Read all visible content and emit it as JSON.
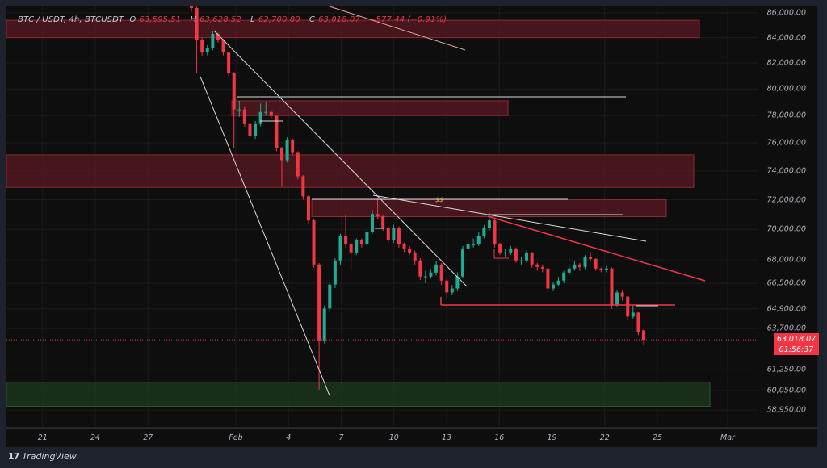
{
  "header": {
    "symbol": "BTC / USDT, 4h, BTCUSDT",
    "open_label": "O",
    "open": "63,595.51",
    "high_label": "H",
    "high": "63,628.52",
    "low_label": "L",
    "low": "62,700.80",
    "close_label": "C",
    "close": "63,018.07",
    "change": "−577.44 (−0.91%)"
  },
  "price_tag": {
    "price": "63,018.07",
    "countdown": "01:56:37"
  },
  "footer": {
    "logo_mark": "17",
    "brand": "TradingView"
  },
  "colors": {
    "up": "#22ab94",
    "down": "#f23645",
    "background": "#0e0e0e",
    "supply_zone": "#5a1a22",
    "demand_zone": "#1c3a1e",
    "trendline": "#d9d9d9",
    "red_trendline": "#f23645",
    "liquidity_label": "#e0b64a"
  },
  "annotations": {
    "liquidity_label": "$$"
  },
  "chart_data": {
    "type": "candlestick",
    "symbol": "BTCUSDT",
    "interval": "4h",
    "y_scale": "log",
    "ylim": [
      58500,
      86500
    ],
    "grid": true,
    "y_ticks": [
      86000,
      84000,
      82000,
      80000,
      78000,
      76000,
      74000,
      72000,
      70000,
      68000,
      66500,
      64900,
      63700,
      61250,
      60050,
      58950
    ],
    "y_tick_labels": [
      "86,000.00",
      "84,000.00",
      "82,000.00",
      "80,000.00",
      "78,000.00",
      "76,000.00",
      "74,000.00",
      "72,000.00",
      "70,000.00",
      "68,000.00",
      "66,500.00",
      "64,900.00",
      "63,700.00",
      "61,250.00",
      "60,050.00",
      "58,950.00"
    ],
    "x_tick_labels": [
      "21",
      "24",
      "27",
      "Feb",
      "4",
      "7",
      "10",
      "13",
      "16",
      "19",
      "22",
      "25",
      "Mar"
    ],
    "x_ticks_days_from_jan": [
      21,
      24,
      27,
      32,
      35,
      38,
      41,
      44,
      47,
      50,
      53,
      56,
      60
    ],
    "last_price": 63018.07,
    "candles_ohlc": [
      [
        86800,
        86900,
        86100,
        86400
      ],
      [
        86400,
        86500,
        81200,
        83800
      ],
      [
        83800,
        84000,
        82500,
        82820
      ],
      [
        82820,
        83400,
        82600,
        83150
      ],
      [
        83150,
        84500,
        83000,
        84300
      ],
      [
        84300,
        84400,
        83600,
        83800
      ],
      [
        83800,
        83900,
        82600,
        82820
      ],
      [
        82820,
        82900,
        81000,
        81230
      ],
      [
        81230,
        81300,
        75600,
        78460
      ],
      [
        78460,
        79100,
        77900,
        78460
      ],
      [
        78460,
        78700,
        77200,
        77370
      ],
      [
        77370,
        77500,
        76200,
        76490
      ],
      [
        76490,
        77600,
        76300,
        77370
      ],
      [
        77370,
        78900,
        77200,
        78270
      ],
      [
        78270,
        79000,
        78000,
        78270
      ],
      [
        78270,
        78400,
        77800,
        77970
      ],
      [
        77970,
        78000,
        75400,
        75620
      ],
      [
        75620,
        75700,
        72900,
        74760
      ],
      [
        74760,
        76400,
        74600,
        76200
      ],
      [
        76200,
        76300,
        75100,
        75330
      ],
      [
        75330,
        75400,
        73400,
        73620
      ],
      [
        73620,
        73700,
        72000,
        72230
      ],
      [
        72230,
        72300,
        70400,
        70600
      ],
      [
        70600,
        70700,
        67500,
        67700
      ],
      [
        67700,
        67800,
        60100,
        62980
      ],
      [
        62980,
        65100,
        62800,
        64920
      ],
      [
        64920,
        66600,
        64700,
        66420
      ],
      [
        66420,
        68100,
        66200,
        67960
      ],
      [
        67960,
        69700,
        67700,
        69530
      ],
      [
        69530,
        71000,
        68800,
        69000
      ],
      [
        69000,
        69200,
        67300,
        68480
      ],
      [
        68480,
        69400,
        68300,
        69270
      ],
      [
        69270,
        69400,
        68800,
        69000
      ],
      [
        69000,
        70000,
        68900,
        69800
      ],
      [
        69800,
        71300,
        69700,
        71030
      ],
      [
        71030,
        72100,
        70700,
        70870
      ],
      [
        70870,
        71000,
        69900,
        70070
      ],
      [
        70070,
        70200,
        69100,
        69270
      ],
      [
        69270,
        70300,
        69100,
        70070
      ],
      [
        70070,
        70200,
        68800,
        69000
      ],
      [
        69000,
        69100,
        68500,
        68740
      ],
      [
        68740,
        68900,
        68300,
        68480
      ],
      [
        68480,
        68600,
        67700,
        67960
      ],
      [
        67960,
        68100,
        66700,
        66930
      ],
      [
        66930,
        67300,
        66500,
        66930
      ],
      [
        66930,
        67400,
        66800,
        67180
      ],
      [
        67180,
        67900,
        67000,
        67700
      ],
      [
        67700,
        67800,
        66400,
        66670
      ],
      [
        66670,
        66800,
        65600,
        65920
      ],
      [
        65920,
        66400,
        65800,
        66170
      ],
      [
        66170,
        67200,
        66000,
        66930
      ],
      [
        66930,
        68900,
        66800,
        68740
      ],
      [
        68740,
        69300,
        68600,
        69000
      ],
      [
        69000,
        69400,
        68800,
        69000
      ],
      [
        69000,
        69800,
        68900,
        69530
      ],
      [
        69530,
        70300,
        69400,
        70070
      ],
      [
        70070,
        71100,
        69900,
        70600
      ],
      [
        70600,
        70700,
        68800,
        69000
      ],
      [
        69000,
        69100,
        68300,
        68480
      ],
      [
        68480,
        68700,
        68200,
        68480
      ],
      [
        68480,
        68900,
        68300,
        68740
      ],
      [
        68740,
        68800,
        67800,
        67960
      ],
      [
        67960,
        68200,
        67700,
        67960
      ],
      [
        67960,
        68600,
        67800,
        68480
      ],
      [
        68480,
        68500,
        67500,
        67700
      ],
      [
        67700,
        67800,
        67300,
        67540
      ],
      [
        67540,
        67700,
        67200,
        67440
      ],
      [
        67440,
        67500,
        65900,
        66170
      ],
      [
        66170,
        66600,
        66000,
        66420
      ],
      [
        66420,
        66900,
        66300,
        66670
      ],
      [
        66670,
        67300,
        66500,
        67180
      ],
      [
        67180,
        67700,
        67000,
        67440
      ],
      [
        67440,
        67900,
        67300,
        67700
      ],
      [
        67700,
        67800,
        67300,
        67540
      ],
      [
        67540,
        68300,
        67400,
        68160
      ],
      [
        68160,
        68500,
        67900,
        68060
      ],
      [
        68060,
        68100,
        67300,
        67440
      ],
      [
        67440,
        67500,
        67200,
        67340
      ],
      [
        67340,
        67600,
        67200,
        67440
      ],
      [
        67440,
        67500,
        64900,
        65160
      ],
      [
        65160,
        66100,
        65000,
        65920
      ],
      [
        65920,
        66100,
        65400,
        65660
      ],
      [
        65660,
        65700,
        64200,
        64420
      ],
      [
        64420,
        65100,
        64300,
        64670
      ],
      [
        64670,
        64700,
        63300,
        63460
      ],
      [
        63595.51,
        63628.52,
        62700.8,
        63018.07
      ]
    ],
    "zones": [
      {
        "kind": "supply",
        "price_top": 85400,
        "price_bottom": 84000
      },
      {
        "kind": "supply",
        "price_top": 79100,
        "price_bottom": 78000
      },
      {
        "kind": "supply",
        "price_top": 75140,
        "price_bottom": 72850
      },
      {
        "kind": "supply",
        "price_top": 72000,
        "price_bottom": 70850
      },
      {
        "kind": "demand",
        "price_top": 60530,
        "price_bottom": 59150
      }
    ]
  }
}
